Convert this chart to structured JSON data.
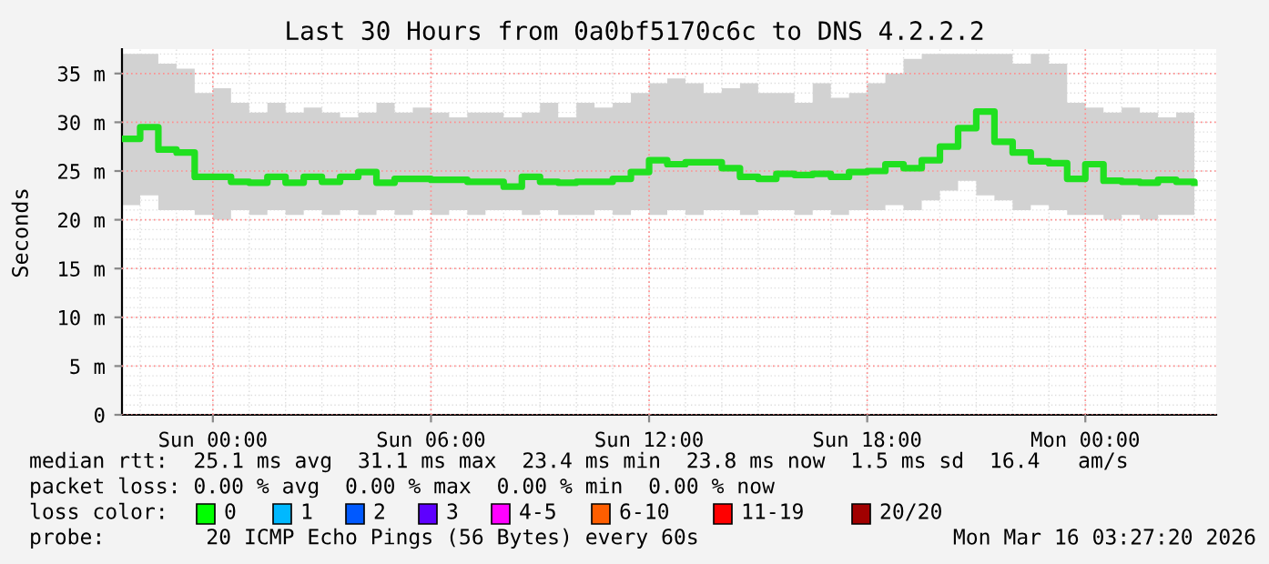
{
  "chart_data": {
    "type": "step",
    "title": "Last 30 Hours from 0a0bf5170c6c to DNS 4.2.2.2",
    "ylabel": "Seconds",
    "x": [
      "2026-03-14T21:30",
      "2026-03-14T22:00",
      "2026-03-14T22:30",
      "2026-03-14T23:00",
      "2026-03-14T23:30",
      "2026-03-15T00:00",
      "2026-03-15T00:30",
      "2026-03-15T01:00",
      "2026-03-15T01:30",
      "2026-03-15T02:00",
      "2026-03-15T02:30",
      "2026-03-15T03:00",
      "2026-03-15T03:30",
      "2026-03-15T04:00",
      "2026-03-15T04:30",
      "2026-03-15T05:00",
      "2026-03-15T05:30",
      "2026-03-15T06:00",
      "2026-03-15T06:30",
      "2026-03-15T07:00",
      "2026-03-15T07:30",
      "2026-03-15T08:00",
      "2026-03-15T08:30",
      "2026-03-15T09:00",
      "2026-03-15T09:30",
      "2026-03-15T10:00",
      "2026-03-15T10:30",
      "2026-03-15T11:00",
      "2026-03-15T11:30",
      "2026-03-15T12:00",
      "2026-03-15T12:30",
      "2026-03-15T13:00",
      "2026-03-15T13:30",
      "2026-03-15T14:00",
      "2026-03-15T14:30",
      "2026-03-15T15:00",
      "2026-03-15T15:30",
      "2026-03-15T16:00",
      "2026-03-15T16:30",
      "2026-03-15T17:00",
      "2026-03-15T17:30",
      "2026-03-15T18:00",
      "2026-03-15T18:30",
      "2026-03-15T19:00",
      "2026-03-15T19:30",
      "2026-03-15T20:00",
      "2026-03-15T20:30",
      "2026-03-15T21:00",
      "2026-03-15T21:30",
      "2026-03-15T22:00",
      "2026-03-15T22:30",
      "2026-03-15T23:00",
      "2026-03-15T23:30",
      "2026-03-16T00:00",
      "2026-03-16T00:30",
      "2026-03-16T01:00",
      "2026-03-16T01:30",
      "2026-03-16T02:00",
      "2026-03-16T02:30",
      "2026-03-16T03:00"
    ],
    "series": [
      {
        "color": "#20e020",
        "values": [
          28.3,
          29.5,
          27.2,
          26.9,
          24.4,
          24.4,
          23.9,
          23.8,
          24.4,
          23.8,
          24.4,
          23.9,
          24.4,
          24.9,
          23.8,
          24.2,
          24.2,
          24.1,
          24.1,
          23.9,
          23.9,
          23.4,
          24.4,
          23.9,
          23.8,
          23.9,
          23.9,
          24.2,
          24.9,
          26.1,
          25.7,
          25.9,
          25.9,
          25.3,
          24.4,
          24.2,
          24.7,
          24.6,
          24.7,
          24.4,
          24.9,
          25.0,
          25.7,
          25.3,
          26.1,
          27.5,
          29.4,
          31.1,
          28.0,
          26.9,
          26.0,
          25.8,
          24.2,
          25.7,
          24.0,
          23.9,
          23.8,
          24.1,
          23.9,
          23.8
        ],
        "lower": [
          21.5,
          22.5,
          21,
          21,
          20.5,
          20,
          21,
          20.5,
          21,
          20.5,
          21,
          20.5,
          21,
          20.5,
          21,
          20.5,
          21,
          20.5,
          21,
          20.5,
          21,
          21,
          20.5,
          21,
          20.5,
          20.5,
          21,
          20.5,
          21,
          20.5,
          21,
          20.5,
          21,
          21,
          20.5,
          21,
          21,
          20.5,
          21,
          20.5,
          21,
          21,
          21.5,
          21,
          22,
          23,
          24,
          22.5,
          22,
          21,
          21.5,
          21,
          20.5,
          20.5,
          20,
          20.5,
          20,
          20.5,
          20.5,
          21
        ],
        "upper": [
          37,
          37,
          36,
          35.5,
          33,
          33.5,
          32,
          31,
          32,
          31,
          31.5,
          31,
          30.5,
          31,
          32,
          31,
          31.5,
          31,
          30.5,
          31,
          31,
          30.5,
          31,
          32,
          30.5,
          32,
          31.5,
          32,
          33,
          34,
          34.5,
          34,
          33,
          33.5,
          34,
          33,
          33,
          32,
          34,
          32.5,
          33,
          34,
          35,
          36.5,
          37,
          37,
          37,
          37,
          37,
          36,
          37,
          36,
          32,
          31.5,
          31,
          31.5,
          31,
          30.5,
          31,
          30.5
        ]
      }
    ],
    "xlim": [
      "2026-03-14T21:30",
      "2026-03-16T03:36"
    ],
    "xticks": [
      {
        "value": "2026-03-15T00:00",
        "label": "Sun 00:00"
      },
      {
        "value": "2026-03-15T06:00",
        "label": "Sun 06:00"
      },
      {
        "value": "2026-03-15T12:00",
        "label": "Sun 12:00"
      },
      {
        "value": "2026-03-15T18:00",
        "label": "Sun 18:00"
      },
      {
        "value": "2026-03-16T00:00",
        "label": "Mon 00:00"
      }
    ],
    "ylim": [
      0,
      37.5
    ],
    "yticks": [
      0,
      {
        "value": 5,
        "label": "5 m"
      },
      {
        "value": 10,
        "label": "10 m"
      },
      {
        "value": 15,
        "label": "15 m"
      },
      {
        "value": 20,
        "label": "20 m"
      },
      {
        "value": 25,
        "label": "25 m"
      },
      {
        "value": 30,
        "label": "30 m"
      },
      {
        "value": 35,
        "label": "35 m"
      }
    ],
    "grid": true,
    "annotations": [
      "median rtt:  25.1 ms avg  31.1 ms max  23.4 ms min  23.8 ms now  1.5 ms sd  16.4   am/s",
      "packet loss: 0.00 % avg  0.00 % max  0.00 % min  0.00 % now",
      "loss color:",
      "0",
      "1",
      "2",
      "3",
      "4-5",
      "6-10",
      "11-19",
      "20/20",
      "probe:        20 ICMP Echo Pings (56 Bytes) every 60s",
      "Mon Mar 16 03:27:20 2026"
    ]
  }
}
